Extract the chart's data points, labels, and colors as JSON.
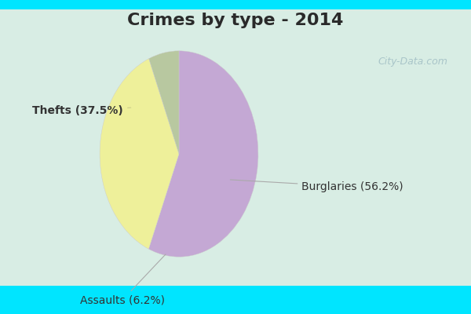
{
  "title": "Crimes by type - 2014",
  "slices": [
    {
      "label": "Burglaries (56.2%)",
      "value": 56.2,
      "color": "#c4a8d4"
    },
    {
      "label": "Thefts (37.5%)",
      "value": 37.5,
      "color": "#eef09a"
    },
    {
      "label": "Assaults (6.2%)",
      "value": 6.2,
      "color": "#b8c8a0"
    }
  ],
  "bg_color_border": "#00e5ff",
  "bg_color_inner": "#d8ede4",
  "title_fontsize": 16,
  "label_fontsize": 10,
  "watermark": "City-Data.com"
}
